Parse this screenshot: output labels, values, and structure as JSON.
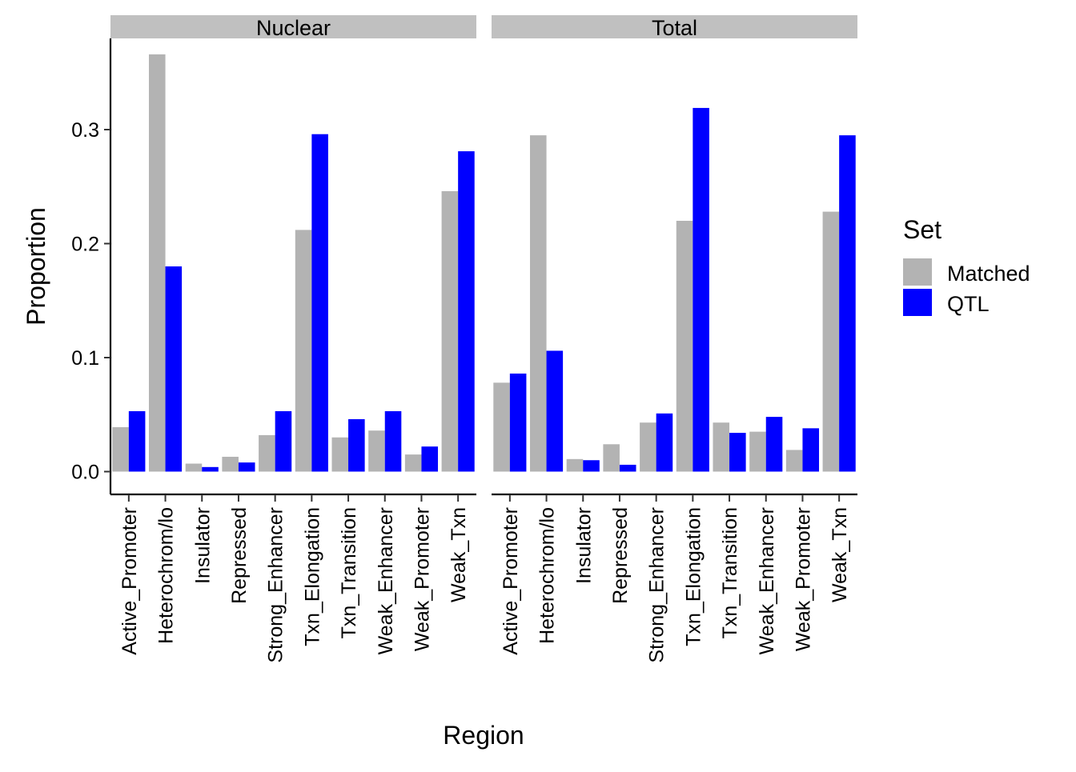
{
  "chart_data": {
    "type": "bar",
    "xlabel": "Region",
    "ylabel": "Proportion",
    "ylim": [
      -0.02,
      0.38
    ],
    "yticks": [
      "0.0",
      "0.1",
      "0.2",
      "0.3"
    ],
    "categories": [
      "Active_Promoter",
      "Heterochrom/lo",
      "Insulator",
      "Repressed",
      "Strong_Enhancer",
      "Txn_Elongation",
      "Txn_Transition",
      "Weak_Enhancer",
      "Weak_Promoter",
      "Weak_Txn"
    ],
    "legend": {
      "title": "Set",
      "position": "right",
      "entries": [
        {
          "label": "Matched",
          "color": "#b3b3b3"
        },
        {
          "label": "QTL",
          "color": "#0000ff"
        }
      ]
    },
    "grid": false,
    "panels": [
      {
        "strip": "Nuclear",
        "series": [
          {
            "name": "Matched",
            "color": "#b3b3b3",
            "values": [
              0.039,
              0.366,
              0.007,
              0.013,
              0.032,
              0.212,
              0.03,
              0.036,
              0.015,
              0.246
            ]
          },
          {
            "name": "QTL",
            "color": "#0000ff",
            "values": [
              0.053,
              0.18,
              0.004,
              0.008,
              0.053,
              0.296,
              0.046,
              0.053,
              0.022,
              0.281
            ]
          }
        ]
      },
      {
        "strip": "Total",
        "series": [
          {
            "name": "Matched",
            "color": "#b3b3b3",
            "values": [
              0.078,
              0.295,
              0.011,
              0.024,
              0.043,
              0.22,
              0.043,
              0.035,
              0.019,
              0.228
            ]
          },
          {
            "name": "QTL",
            "color": "#0000ff",
            "values": [
              0.086,
              0.106,
              0.01,
              0.006,
              0.051,
              0.319,
              0.034,
              0.048,
              0.038,
              0.295
            ]
          }
        ]
      }
    ]
  }
}
